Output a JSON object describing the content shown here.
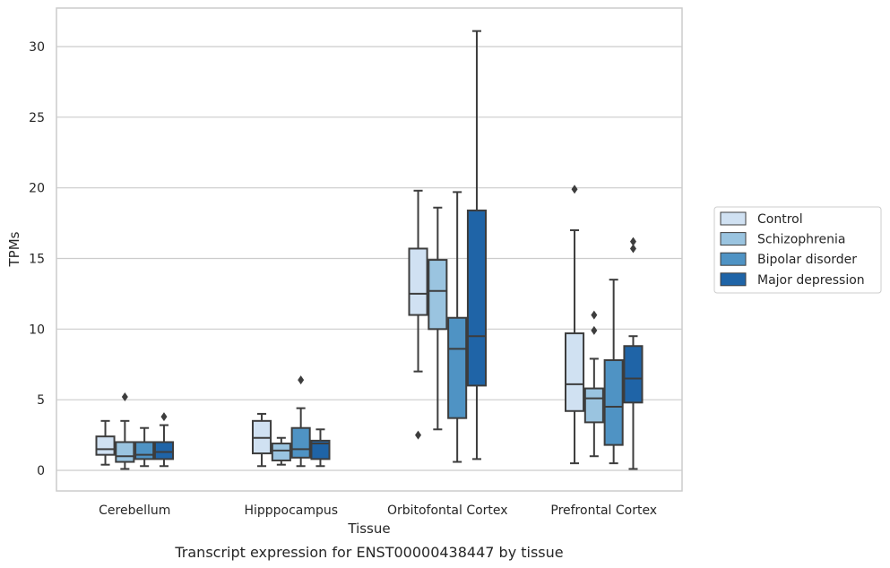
{
  "chart_data": {
    "type": "box",
    "caption": "Transcript expression for ENST00000438447 by tissue",
    "xlabel": "Tissue",
    "ylabel": "TPMs",
    "ylim": [
      -1.4,
      32.7
    ],
    "yticks": [
      0,
      5,
      10,
      15,
      20,
      25,
      30
    ],
    "grid": "horizontal",
    "legend_position": "right",
    "categories": [
      "Cerebellum",
      "Hipppocampus",
      "Orbitofontal Cortex",
      "Prefrontal Cortex"
    ],
    "series": [
      {
        "name": "Control",
        "color": "#d0e1f2",
        "boxes": [
          {
            "whislo": 0.4,
            "q1": 1.1,
            "med": 1.5,
            "q3": 2.4,
            "whishi": 3.5,
            "fliers": []
          },
          {
            "whislo": 0.3,
            "q1": 1.2,
            "med": 2.3,
            "q3": 3.5,
            "whishi": 4.0,
            "fliers": []
          },
          {
            "whislo": 7.0,
            "q1": 11.0,
            "med": 12.5,
            "q3": 15.7,
            "whishi": 19.8,
            "fliers": [
              2.5
            ]
          },
          {
            "whislo": 0.5,
            "q1": 4.2,
            "med": 6.1,
            "q3": 9.7,
            "whishi": 17.0,
            "fliers": [
              19.9
            ]
          }
        ]
      },
      {
        "name": "Schizophrenia",
        "color": "#9ac4e0",
        "boxes": [
          {
            "whislo": 0.1,
            "q1": 0.6,
            "med": 1.0,
            "q3": 2.0,
            "whishi": 3.5,
            "fliers": [
              5.2
            ]
          },
          {
            "whislo": 0.4,
            "q1": 0.7,
            "med": 1.4,
            "q3": 1.9,
            "whishi": 2.3,
            "fliers": []
          },
          {
            "whislo": 2.9,
            "q1": 10.0,
            "med": 12.7,
            "q3": 14.9,
            "whishi": 18.6,
            "fliers": []
          },
          {
            "whislo": 1.0,
            "q1": 3.4,
            "med": 5.1,
            "q3": 5.8,
            "whishi": 7.9,
            "fliers": [
              9.9,
              11.0
            ]
          }
        ]
      },
      {
        "name": "Bipolar disorder",
        "color": "#4f93c4",
        "boxes": [
          {
            "whislo": 0.3,
            "q1": 0.8,
            "med": 1.1,
            "q3": 2.0,
            "whishi": 3.0,
            "fliers": []
          },
          {
            "whislo": 0.3,
            "q1": 0.9,
            "med": 1.5,
            "q3": 3.0,
            "whishi": 4.4,
            "fliers": [
              6.4
            ]
          },
          {
            "whislo": 0.6,
            "q1": 3.7,
            "med": 8.6,
            "q3": 10.8,
            "whishi": 19.7,
            "fliers": []
          },
          {
            "whislo": 0.5,
            "q1": 1.8,
            "med": 4.5,
            "q3": 7.8,
            "whishi": 13.5,
            "fliers": []
          }
        ]
      },
      {
        "name": "Major depression",
        "color": "#1f64a7",
        "boxes": [
          {
            "whislo": 0.3,
            "q1": 0.8,
            "med": 1.3,
            "q3": 2.0,
            "whishi": 3.2,
            "fliers": [
              3.8
            ]
          },
          {
            "whislo": 0.3,
            "q1": 0.8,
            "med": 1.9,
            "q3": 2.1,
            "whishi": 2.9,
            "fliers": []
          },
          {
            "whislo": 0.8,
            "q1": 6.0,
            "med": 9.5,
            "q3": 18.4,
            "whishi": 31.1,
            "fliers": []
          },
          {
            "whislo": 0.1,
            "q1": 4.8,
            "med": 6.5,
            "q3": 8.8,
            "whishi": 9.5,
            "fliers": [
              15.7,
              16.2
            ]
          }
        ]
      }
    ]
  }
}
